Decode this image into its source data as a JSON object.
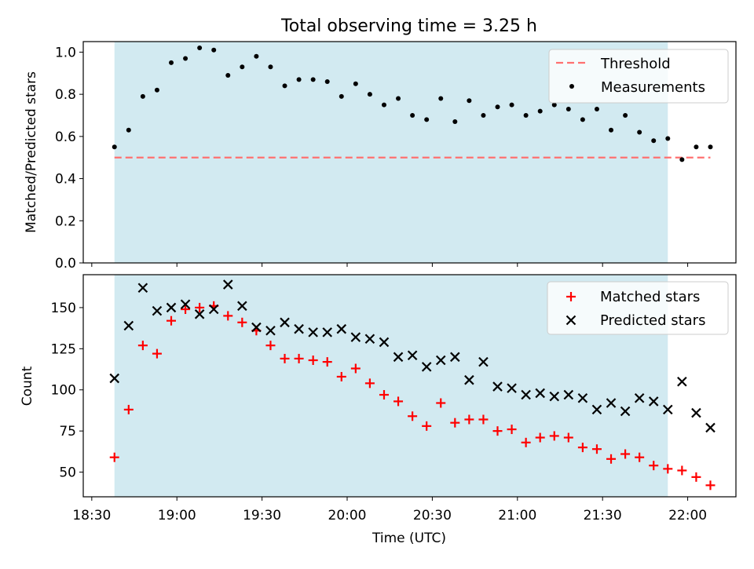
{
  "title": "Total observing time = 3.25 h",
  "colors": {
    "shade": "#add8e6",
    "threshold": "#ff7070",
    "measurement": "#000000",
    "matched": "#ff0000",
    "predicted": "#000000"
  },
  "chart_data": [
    {
      "type": "scatter",
      "panel": "top",
      "ylabel": "Matched/Predicted stars",
      "xlim": [
        "18:27",
        "22:17"
      ],
      "ylim": [
        0,
        1.05
      ],
      "yticks": [
        "0.0",
        "0.2",
        "0.4",
        "0.6",
        "0.8",
        "1.0"
      ],
      "shaded_span": [
        "18:38",
        "21:53"
      ],
      "threshold": 0.5,
      "threshold_x": [
        "18:38",
        "22:08"
      ],
      "legend": {
        "position": "upper right",
        "threshold_label": "Threshold",
        "measurements_label": "Measurements"
      },
      "series": [
        {
          "name": "Measurements",
          "x": [
            "18:38",
            "18:43",
            "18:48",
            "18:53",
            "18:58",
            "19:03",
            "19:08",
            "19:13",
            "19:18",
            "19:23",
            "19:28",
            "19:33",
            "19:38",
            "19:43",
            "19:48",
            "19:53",
            "19:58",
            "20:03",
            "20:08",
            "20:13",
            "20:18",
            "20:23",
            "20:28",
            "20:33",
            "20:38",
            "20:43",
            "20:48",
            "20:53",
            "20:58",
            "21:03",
            "21:08",
            "21:13",
            "21:18",
            "21:23",
            "21:28",
            "21:33",
            "21:38",
            "21:43",
            "21:48",
            "21:53",
            "21:58",
            "22:03",
            "22:08"
          ],
          "values": [
            0.55,
            0.63,
            0.79,
            0.82,
            0.95,
            0.97,
            1.02,
            1.01,
            0.89,
            0.93,
            0.98,
            0.93,
            0.84,
            0.87,
            0.87,
            0.86,
            0.79,
            0.85,
            0.8,
            0.75,
            0.78,
            0.7,
            0.68,
            0.78,
            0.67,
            0.77,
            0.7,
            0.74,
            0.75,
            0.7,
            0.72,
            0.75,
            0.73,
            0.68,
            0.73,
            0.63,
            0.7,
            0.62,
            0.58,
            0.59,
            0.49,
            0.55,
            0.55
          ]
        }
      ]
    },
    {
      "type": "scatter",
      "panel": "bottom",
      "xlabel": "Time (UTC)",
      "ylabel": "Count",
      "xlim": [
        "18:27",
        "22:17"
      ],
      "ylim": [
        35,
        170
      ],
      "yticks": [
        "50",
        "75",
        "100",
        "125",
        "150"
      ],
      "xticks": [
        "18:30",
        "19:00",
        "19:30",
        "20:00",
        "20:30",
        "21:00",
        "21:30",
        "22:00"
      ],
      "shaded_span": [
        "18:38",
        "21:53"
      ],
      "legend": {
        "position": "upper right"
      },
      "series": [
        {
          "name": "Matched stars",
          "x": [
            "18:38",
            "18:43",
            "18:48",
            "18:53",
            "18:58",
            "19:03",
            "19:08",
            "19:13",
            "19:18",
            "19:23",
            "19:28",
            "19:33",
            "19:38",
            "19:43",
            "19:48",
            "19:53",
            "19:58",
            "20:03",
            "20:08",
            "20:13",
            "20:18",
            "20:23",
            "20:28",
            "20:33",
            "20:38",
            "20:43",
            "20:48",
            "20:53",
            "20:58",
            "21:03",
            "21:08",
            "21:13",
            "21:18",
            "21:23",
            "21:28",
            "21:33",
            "21:38",
            "21:43",
            "21:48",
            "21:53",
            "21:58",
            "22:03",
            "22:08"
          ],
          "values": [
            59,
            88,
            127,
            122,
            142,
            149,
            150,
            151,
            145,
            141,
            136,
            127,
            119,
            119,
            118,
            117,
            108,
            113,
            104,
            97,
            93,
            84,
            78,
            92,
            80,
            82,
            82,
            75,
            76,
            68,
            71,
            72,
            71,
            65,
            64,
            58,
            61,
            59,
            54,
            52,
            51,
            47,
            42
          ]
        },
        {
          "name": "Predicted stars",
          "x": [
            "18:38",
            "18:43",
            "18:48",
            "18:53",
            "18:58",
            "19:03",
            "19:08",
            "19:13",
            "19:18",
            "19:23",
            "19:28",
            "19:33",
            "19:38",
            "19:43",
            "19:48",
            "19:53",
            "19:58",
            "20:03",
            "20:08",
            "20:13",
            "20:18",
            "20:23",
            "20:28",
            "20:33",
            "20:38",
            "20:43",
            "20:48",
            "20:53",
            "20:58",
            "21:03",
            "21:08",
            "21:13",
            "21:18",
            "21:23",
            "21:28",
            "21:33",
            "21:38",
            "21:43",
            "21:48",
            "21:53",
            "21:58",
            "22:03",
            "22:08"
          ],
          "values": [
            107,
            139,
            162,
            148,
            150,
            152,
            146,
            149,
            164,
            151,
            138,
            136,
            141,
            137,
            135,
            135,
            137,
            132,
            131,
            129,
            120,
            121,
            114,
            118,
            120,
            106,
            117,
            102,
            101,
            97,
            98,
            96,
            97,
            95,
            88,
            92,
            87,
            95,
            93,
            88,
            105,
            86,
            77
          ]
        }
      ]
    }
  ]
}
